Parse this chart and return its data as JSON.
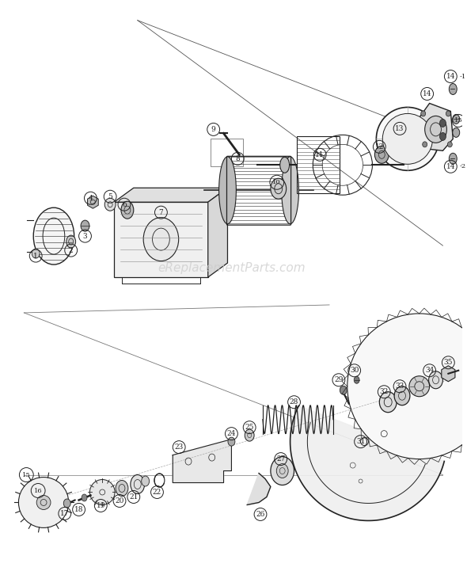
{
  "bg_color": "#ffffff",
  "line_color": "#222222",
  "label_color": "#222222",
  "watermark": "eReplacementParts.com",
  "watermark_color": "#cccccc",
  "fig_width": 5.9,
  "fig_height": 7.21,
  "dpi": 100
}
